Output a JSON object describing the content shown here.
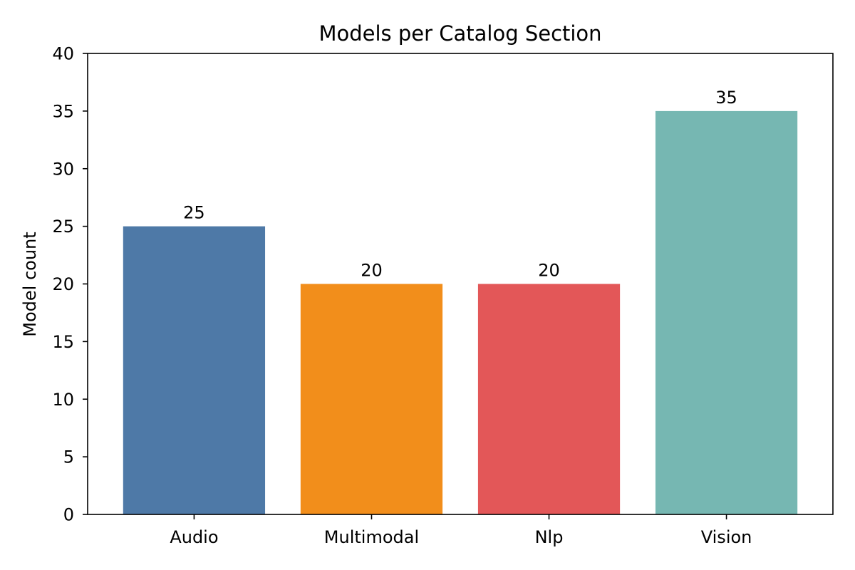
{
  "chart_data": {
    "type": "bar",
    "title": "Models per Catalog Section",
    "xlabel": "",
    "ylabel": "Model count",
    "categories": [
      "Audio",
      "Multimodal",
      "Nlp",
      "Vision"
    ],
    "values": [
      25,
      20,
      20,
      35
    ],
    "data_labels": [
      "25",
      "20",
      "20",
      "35"
    ],
    "colors": [
      "#4e79a7",
      "#f28e1b",
      "#e35758",
      "#76b7b2"
    ],
    "ylim": [
      0,
      40
    ],
    "yticks": [
      0,
      5,
      10,
      15,
      20,
      25,
      30,
      35,
      40
    ],
    "ytick_labels": [
      "0",
      "5",
      "10",
      "15",
      "20",
      "25",
      "30",
      "35",
      "40"
    ],
    "grid": false,
    "legend": "none"
  }
}
